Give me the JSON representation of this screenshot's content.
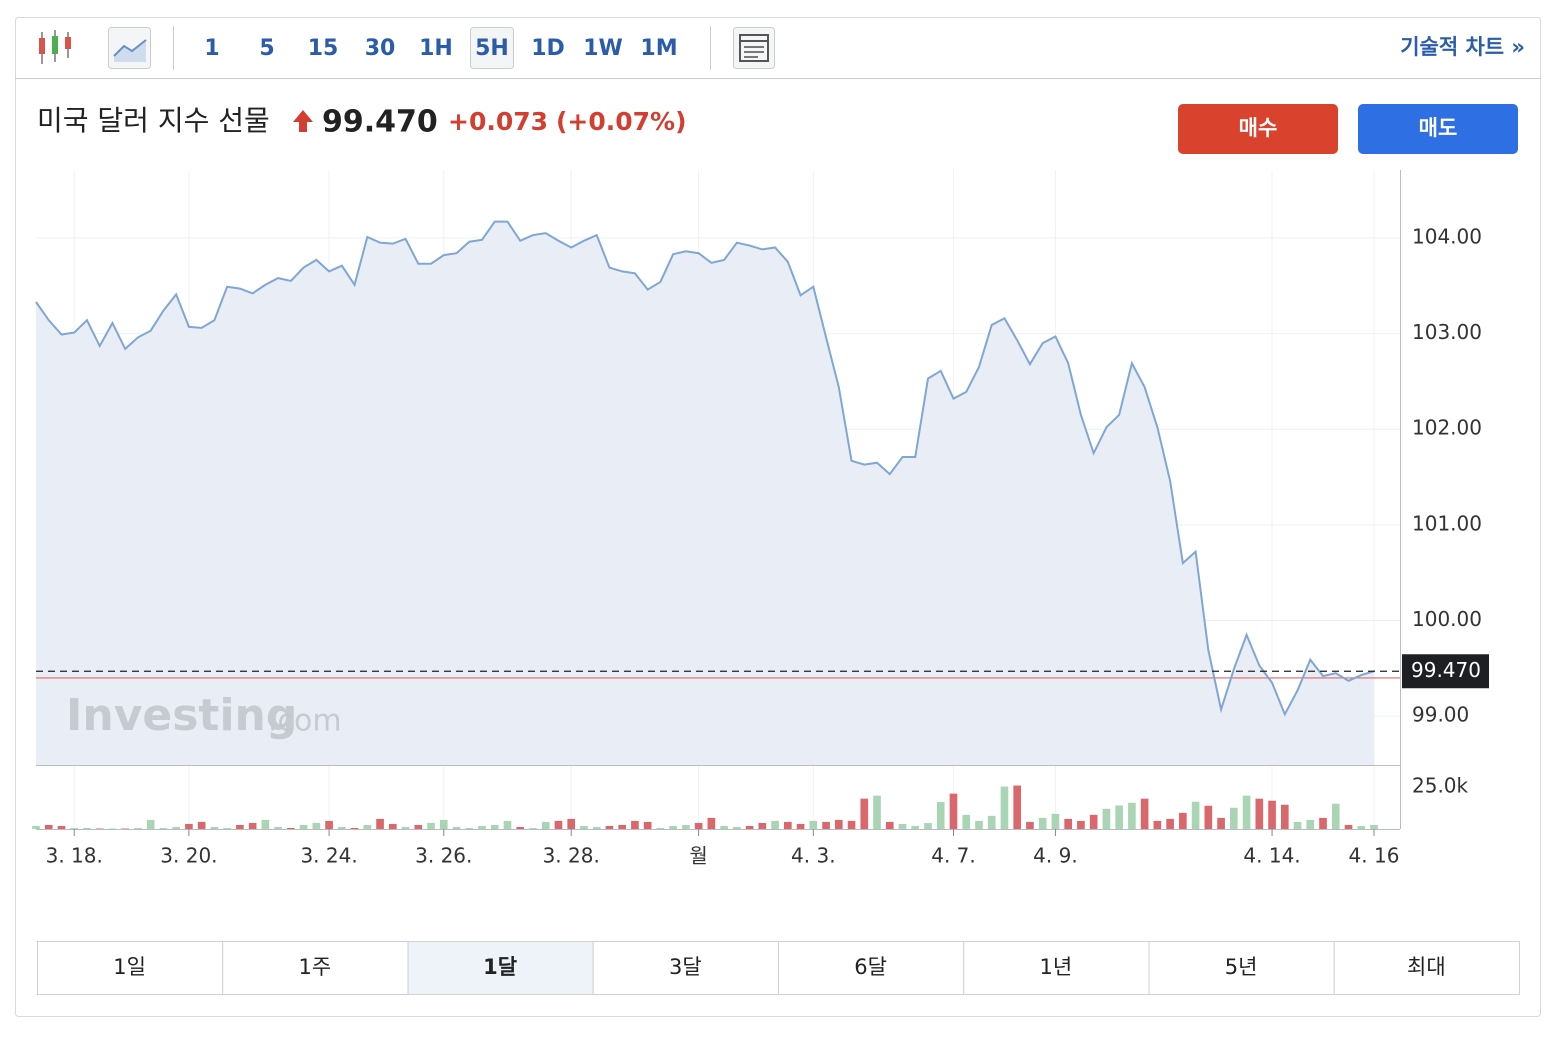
{
  "toolbar": {
    "intervals": [
      {
        "label": "1",
        "selected": false
      },
      {
        "label": "5",
        "selected": false
      },
      {
        "label": "15",
        "selected": false
      },
      {
        "label": "30",
        "selected": false
      },
      {
        "label": "1H",
        "selected": false
      },
      {
        "label": "5H",
        "selected": true
      },
      {
        "label": "1D",
        "selected": false
      },
      {
        "label": "1W",
        "selected": false
      },
      {
        "label": "1M",
        "selected": false
      }
    ],
    "technical_link": "기술적 차트 »"
  },
  "header": {
    "name": "미국 달러 지수 선물",
    "price": "99.470",
    "change": "+0.073",
    "change_pct": "(+0.07%)",
    "buy": "매수",
    "sell": "매도"
  },
  "chart_data": {
    "type": "line",
    "watermark": [
      "Investing",
      ".com"
    ],
    "categories": [
      null,
      null,
      null,
      "3. 18.",
      null,
      null,
      null,
      null,
      null,
      null,
      null,
      null,
      "3. 20.",
      null,
      null,
      null,
      null,
      null,
      null,
      null,
      null,
      null,
      null,
      "3. 24.",
      null,
      null,
      null,
      null,
      null,
      null,
      null,
      null,
      "3. 26.",
      null,
      null,
      null,
      null,
      null,
      null,
      null,
      null,
      null,
      "3. 28.",
      null,
      null,
      null,
      null,
      null,
      null,
      null,
      null,
      null,
      "월",
      null,
      null,
      null,
      null,
      null,
      null,
      null,
      null,
      "4. 3.",
      null,
      null,
      null,
      null,
      null,
      null,
      null,
      null,
      null,
      null,
      "4. 7.",
      null,
      null,
      null,
      null,
      null,
      null,
      null,
      "4. 9.",
      null,
      null,
      null,
      null,
      null,
      null,
      null,
      null,
      null,
      null,
      null,
      null,
      null,
      null,
      null,
      null,
      "4. 14.",
      null,
      null,
      null,
      null,
      null,
      null,
      null,
      "4. 16"
    ],
    "series": [
      {
        "name": "price",
        "color": "#7fa6d4",
        "fill": "#e9eef6",
        "values": [
          103.33,
          103.14,
          102.99,
          103.01,
          103.14,
          102.87,
          103.11,
          102.84,
          102.96,
          103.03,
          103.24,
          103.41,
          103.07,
          103.06,
          103.14,
          103.49,
          103.47,
          103.42,
          103.51,
          103.58,
          103.55,
          103.69,
          103.77,
          103.65,
          103.71,
          103.51,
          104.01,
          103.95,
          103.94,
          103.99,
          103.73,
          103.73,
          103.82,
          103.84,
          103.96,
          103.98,
          104.17,
          104.17,
          103.97,
          104.03,
          104.05,
          103.97,
          103.9,
          103.97,
          104.03,
          103.69,
          103.65,
          103.63,
          103.46,
          103.54,
          103.83,
          103.86,
          103.84,
          103.74,
          103.77,
          103.95,
          103.92,
          103.88,
          103.9,
          103.75,
          103.4,
          103.49,
          102.96,
          102.44,
          101.67,
          101.63,
          101.65,
          101.53,
          101.71,
          101.71,
          102.53,
          102.61,
          102.32,
          102.39,
          102.65,
          103.09,
          103.16,
          102.93,
          102.68,
          102.9,
          102.97,
          102.69,
          102.15,
          101.75,
          102.02,
          102.15,
          102.69,
          102.44,
          102.02,
          101.46,
          100.6,
          100.72,
          99.69,
          99.07,
          99.49,
          99.85,
          99.53,
          99.35,
          99.02,
          99.27,
          99.59,
          99.42,
          99.45,
          99.37,
          99.43,
          99.47
        ]
      }
    ],
    "ylim": [
      98.49,
      104.71
    ],
    "yticks": [
      {
        "value": 99,
        "label": "99.00"
      },
      {
        "value": 100,
        "label": "100.00"
      },
      {
        "value": 101,
        "label": "101.00"
      },
      {
        "value": 102,
        "label": "102.00"
      },
      {
        "value": 103,
        "label": "103.00"
      },
      {
        "value": 104,
        "label": "104.00"
      }
    ],
    "price_marker": {
      "value": 99.47,
      "label": "99.470"
    },
    "reference_line": {
      "value": 99.4,
      "color": "#e06666"
    },
    "grid": true,
    "volume": {
      "up_color": "#a9d5b4",
      "down_color": "#d9676c",
      "ylim": [
        0,
        38000
      ],
      "yticks": [
        {
          "value": 25000,
          "label": "25.0k"
        }
      ],
      "values": [
        1800,
        2400,
        1800,
        600,
        600,
        300,
        300,
        300,
        600,
        5400,
        600,
        1200,
        3000,
        4200,
        1200,
        600,
        2400,
        3600,
        5400,
        1200,
        600,
        2400,
        3600,
        4800,
        1200,
        600,
        2400,
        6000,
        3000,
        1200,
        2400,
        3600,
        5400,
        1200,
        600,
        1800,
        2400,
        4800,
        1200,
        600,
        4200,
        4800,
        6000,
        1800,
        1200,
        1800,
        2400,
        4800,
        4200,
        600,
        1800,
        2400,
        3600,
        6600,
        1800,
        1200,
        1800,
        3600,
        4800,
        4200,
        3000,
        4800,
        4200,
        5400,
        4800,
        18000,
        19800,
        4200,
        3000,
        1800,
        3600,
        16000,
        21000,
        8400,
        4800,
        7800,
        25200,
        25800,
        4200,
        6600,
        9000,
        6000,
        4800,
        8400,
        12000,
        14000,
        15600,
        18000,
        4800,
        6000,
        9600,
        16200,
        13800,
        6600,
        12600,
        19800,
        18000,
        16800,
        14400,
        4200,
        5400,
        6600,
        15000,
        2400,
        1800,
        2400
      ]
    }
  },
  "range_tabs": [
    {
      "label": "1일",
      "selected": false
    },
    {
      "label": "1주",
      "selected": false
    },
    {
      "label": "1달",
      "selected": true
    },
    {
      "label": "3달",
      "selected": false
    },
    {
      "label": "6달",
      "selected": false
    },
    {
      "label": "1년",
      "selected": false
    },
    {
      "label": "5년",
      "selected": false
    },
    {
      "label": "최대",
      "selected": false
    }
  ]
}
